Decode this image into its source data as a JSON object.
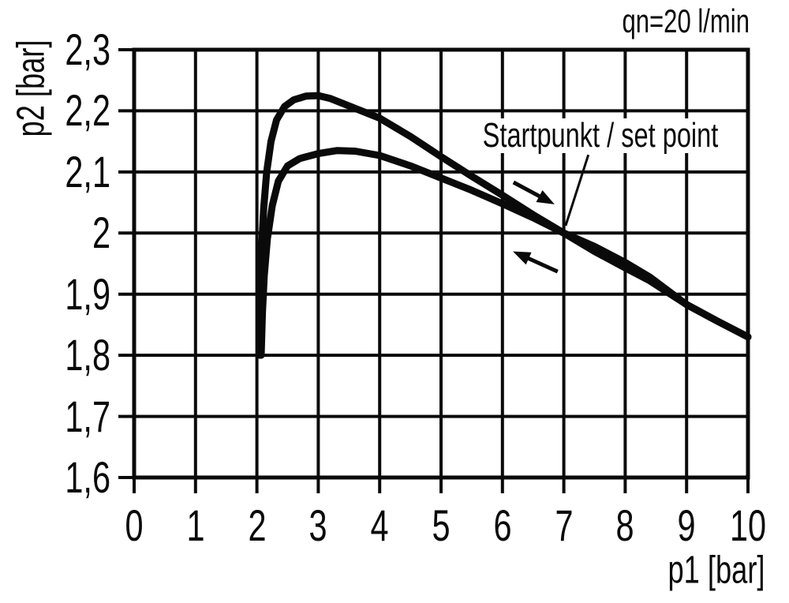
{
  "chart_data": {
    "type": "line",
    "title": "qn=20 l/min",
    "xlabel": "p1 [bar]",
    "ylabel": "p2 [bar]",
    "xlim": [
      0,
      10
    ],
    "ylim": [
      1.6,
      2.3
    ],
    "grid": true,
    "grid_color": "#0a0a0a",
    "curve_color": "#0a0a0a",
    "background_color": "#ffffff",
    "legend_position": "none",
    "x_ticks": [
      {
        "value": 0,
        "label": "0"
      },
      {
        "value": 1,
        "label": "1"
      },
      {
        "value": 2,
        "label": "2"
      },
      {
        "value": 3,
        "label": "3"
      },
      {
        "value": 4,
        "label": "4"
      },
      {
        "value": 5,
        "label": "5"
      },
      {
        "value": 6,
        "label": "6"
      },
      {
        "value": 7,
        "label": "7"
      },
      {
        "value": 8,
        "label": "8"
      },
      {
        "value": 9,
        "label": "9"
      },
      {
        "value": 10,
        "label": "10"
      }
    ],
    "y_ticks": [
      {
        "value": 2.3,
        "label": "2,3"
      },
      {
        "value": 2.2,
        "label": "2,2"
      },
      {
        "value": 2.1,
        "label": "2,1"
      },
      {
        "value": 2.0,
        "label": "2"
      },
      {
        "value": 1.9,
        "label": "1,9"
      },
      {
        "value": 1.8,
        "label": "1,8"
      },
      {
        "value": 1.7,
        "label": "1,7"
      },
      {
        "value": 1.6,
        "label": "1,6"
      }
    ],
    "series": [
      {
        "name": "upper-curve-forward-direction",
        "points": [
          [
            2.05,
            1.8
          ],
          [
            2.06,
            1.9
          ],
          [
            2.08,
            1.98
          ],
          [
            2.11,
            2.04
          ],
          [
            2.16,
            2.1
          ],
          [
            2.23,
            2.15
          ],
          [
            2.32,
            2.185
          ],
          [
            2.45,
            2.207
          ],
          [
            2.6,
            2.218
          ],
          [
            2.8,
            2.224
          ],
          [
            3.0,
            2.225
          ],
          [
            3.2,
            2.22
          ],
          [
            3.5,
            2.208
          ],
          [
            4.0,
            2.188
          ],
          [
            4.5,
            2.158
          ],
          [
            5.0,
            2.125
          ],
          [
            5.5,
            2.093
          ],
          [
            6.0,
            2.062
          ],
          [
            6.5,
            2.03
          ],
          [
            7.0,
            2.0
          ],
          [
            7.5,
            1.97
          ],
          [
            8.0,
            1.943
          ],
          [
            8.4,
            1.922
          ],
          [
            9.0,
            1.883
          ],
          [
            9.5,
            1.856
          ],
          [
            10.0,
            1.83
          ]
        ]
      },
      {
        "name": "lower-curve-return-direction",
        "points": [
          [
            2.07,
            1.8
          ],
          [
            2.09,
            1.87
          ],
          [
            2.12,
            1.93
          ],
          [
            2.17,
            1.99
          ],
          [
            2.25,
            2.045
          ],
          [
            2.35,
            2.085
          ],
          [
            2.5,
            2.11
          ],
          [
            2.7,
            2.122
          ],
          [
            3.0,
            2.13
          ],
          [
            3.3,
            2.135
          ],
          [
            3.6,
            2.134
          ],
          [
            4.0,
            2.127
          ],
          [
            4.5,
            2.11
          ],
          [
            5.0,
            2.09
          ],
          [
            5.5,
            2.07
          ],
          [
            6.0,
            2.048
          ],
          [
            6.5,
            2.025
          ],
          [
            7.0,
            2.0
          ],
          [
            7.5,
            1.978
          ],
          [
            8.0,
            1.952
          ],
          [
            8.4,
            1.928
          ],
          [
            9.0,
            1.883
          ],
          [
            9.5,
            1.856
          ],
          [
            10.0,
            1.83
          ]
        ]
      }
    ],
    "annotations": {
      "setpoint_label": "Startpunkt / set point",
      "setpoint": [
        7.0,
        2.0
      ],
      "leader_line": {
        "from": [
          7.4,
          2.128
        ],
        "to": [
          7.03,
          2.012
        ]
      },
      "arrows": [
        {
          "name": "forward-direction-arrow",
          "from": [
            6.18,
            2.083
          ],
          "to": [
            6.85,
            2.047
          ]
        },
        {
          "name": "return-direction-arrow",
          "from": [
            6.9,
            1.937
          ],
          "to": [
            6.17,
            1.97
          ]
        }
      ]
    }
  }
}
